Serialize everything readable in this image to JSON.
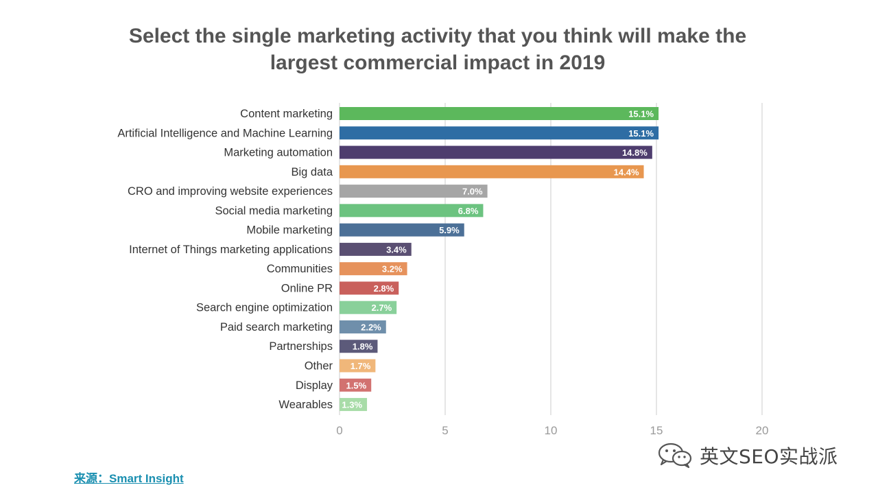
{
  "chart_data": {
    "type": "bar",
    "orientation": "horizontal",
    "title_lines": [
      "Select the single marketing activity that you think will make the",
      "largest commercial impact in 2019"
    ],
    "categories": [
      "Content marketing",
      "Artificial Intelligence and Machine Learning",
      "Marketing automation",
      "Big data",
      "CRO and improving website experiences",
      "Social media marketing",
      "Mobile marketing",
      "Internet of Things marketing applications",
      "Communities",
      "Online PR",
      "Search engine optimization",
      "Paid search marketing",
      "Partnerships",
      "Other",
      "Display",
      "Wearables"
    ],
    "values": [
      15.1,
      15.1,
      14.8,
      14.4,
      7.0,
      6.8,
      5.9,
      3.4,
      3.2,
      2.8,
      2.7,
      2.2,
      1.8,
      1.7,
      1.5,
      1.3
    ],
    "value_labels": [
      "15.1%",
      "15.1%",
      "14.8%",
      "14.4%",
      "7.0%",
      "6.8%",
      "5.9%",
      "3.4%",
      "3.2%",
      "2.8%",
      "2.7%",
      "2.2%",
      "1.8%",
      "1.7%",
      "1.5%",
      "1.3%"
    ],
    "colors": [
      "#5cb85c",
      "#2e6da4",
      "#4e3d6e",
      "#e8974f",
      "#a6a6a6",
      "#6cc380",
      "#4c7097",
      "#5a4f72",
      "#e6925c",
      "#c9605c",
      "#89d09a",
      "#6f8fab",
      "#5c5a7a",
      "#f0b77a",
      "#d27270",
      "#a8dca8"
    ],
    "xlim": [
      0,
      20
    ],
    "xticks": [
      0,
      5,
      10,
      15,
      20
    ],
    "grid": true
  },
  "source": {
    "label": "来源：",
    "name": "Smart Insight"
  },
  "watermark": {
    "text": "英文SEO实战派",
    "icon": "wechat-icon"
  }
}
